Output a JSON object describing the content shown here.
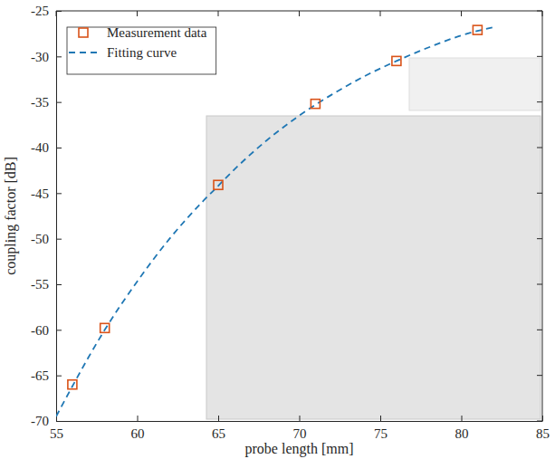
{
  "chart_data": {
    "type": "line",
    "x_label": "probe length [mm]",
    "y_label": "coupling factor [dB]",
    "xlim": [
      55,
      85
    ],
    "xticks": [
      55,
      60,
      65,
      70,
      75,
      80,
      85
    ],
    "ylim": [
      -70,
      -25
    ],
    "yticks": [
      -70,
      -65,
      -60,
      -55,
      -50,
      -45,
      -40,
      -35,
      -30,
      -25
    ],
    "grid": false,
    "legend": "upper left",
    "series": [
      {
        "name": "Measurement data",
        "type": "scatter",
        "marker": "square",
        "color": "#d95319",
        "x": [
          56,
          58,
          65,
          71,
          76,
          81
        ],
        "values": [
          -66,
          -59.8,
          -44.1,
          -35.2,
          -30.5,
          -27.1
        ]
      },
      {
        "name": "Fitting curve",
        "type": "line",
        "line_style": "dashed",
        "color": "#1f77b4",
        "x": [
          55,
          56,
          57,
          58,
          60,
          62,
          64,
          65,
          66,
          68,
          70,
          71,
          72,
          74,
          76,
          78,
          80,
          81,
          82
        ],
        "values": [
          -69.5,
          -66.2,
          -63,
          -60,
          -54.7,
          -50,
          -46,
          -44.2,
          -42.4,
          -39.2,
          -36.5,
          -35.3,
          -34.2,
          -32.2,
          -30.5,
          -29,
          -27.7,
          -27.2,
          -26.8
        ]
      }
    ]
  }
}
